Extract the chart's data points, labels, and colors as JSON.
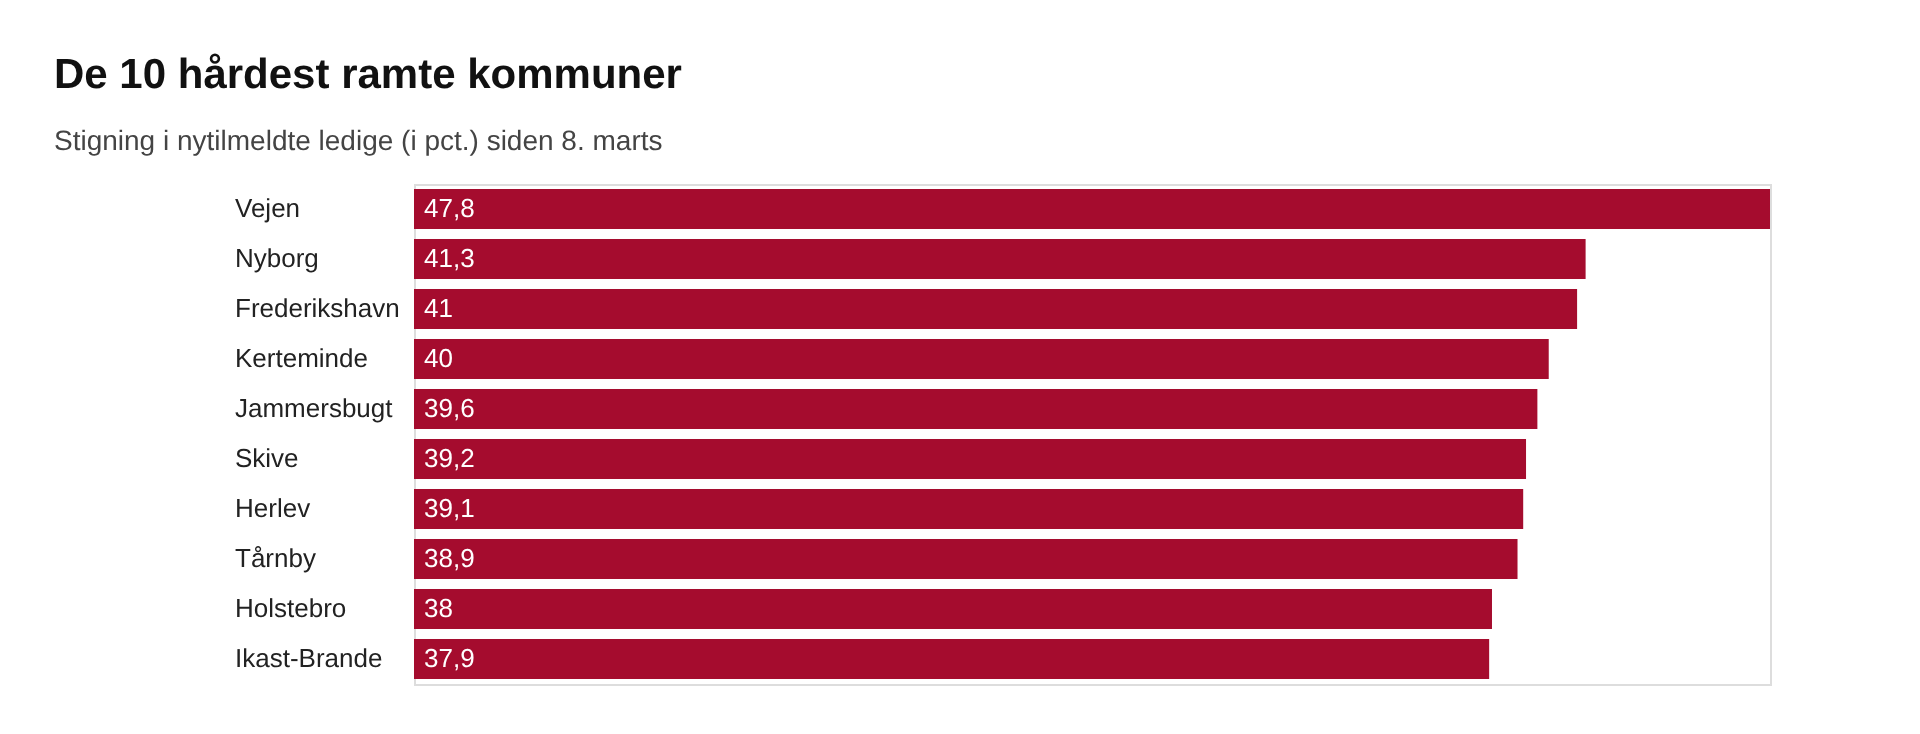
{
  "chart_data": {
    "type": "bar",
    "orientation": "horizontal",
    "title": "De 10 hårdest ramte kommuner",
    "subtitle": "Stigning i nytilmeldte ledige (i pct.) siden 8. marts",
    "categories": [
      "Vejen",
      "Nyborg",
      "Frederikshavn",
      "Kerteminde",
      "Jammersbugt",
      "Skive",
      "Herlev",
      "Tårnby",
      "Holstebro",
      "Ikast-Brande"
    ],
    "values": [
      47.8,
      41.3,
      41,
      40,
      39.6,
      39.2,
      39.1,
      38.9,
      38,
      37.9
    ],
    "value_labels": [
      "47,8",
      "41,3",
      "41",
      "40",
      "39,6",
      "39,2",
      "39,1",
      "38,9",
      "38",
      "37,9"
    ],
    "color": "#a50c2e"
  }
}
